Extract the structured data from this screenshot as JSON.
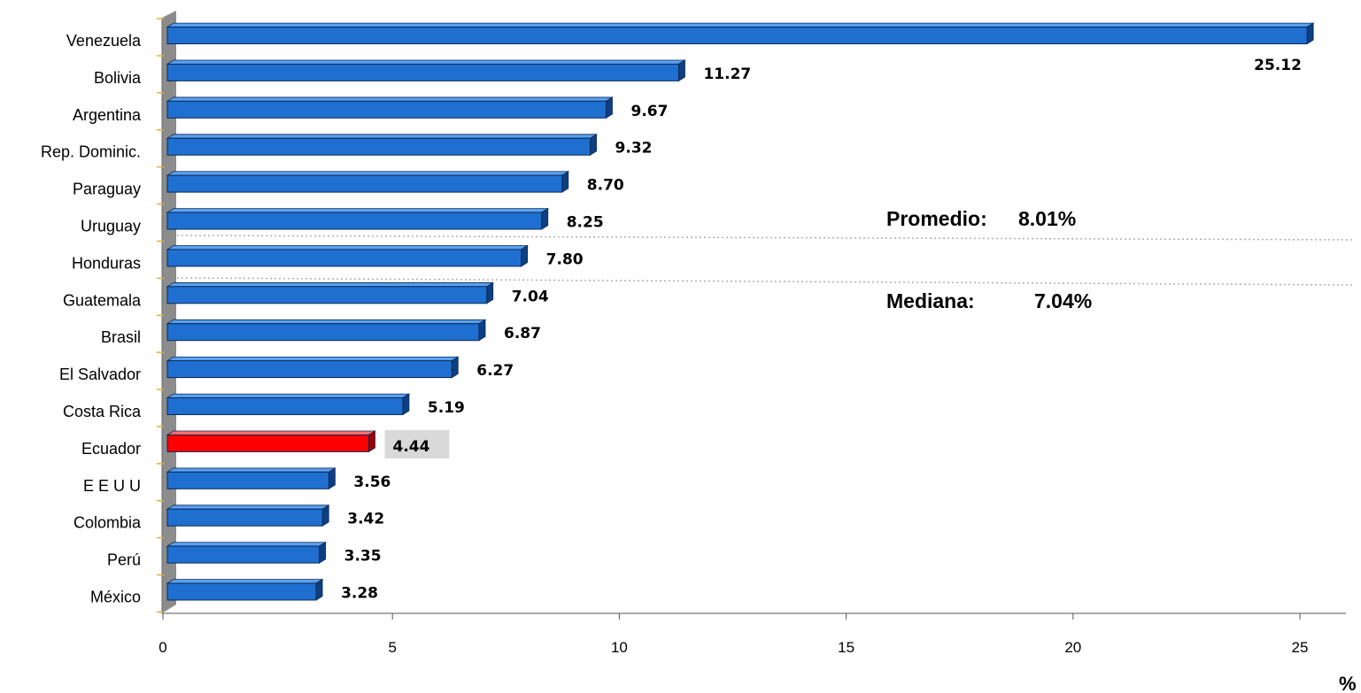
{
  "chart_data": {
    "type": "bar",
    "orientation": "horizontal",
    "categories": [
      "Venezuela",
      "Bolivia",
      "Argentina",
      "Rep. Dominic.",
      "Paraguay",
      "Uruguay",
      "Honduras",
      "Guatemala",
      "Brasil",
      "El Salvador",
      "Costa Rica",
      "Ecuador",
      "E E U U",
      "Colombia",
      "Perú",
      "México"
    ],
    "values": [
      25.12,
      11.27,
      9.67,
      9.32,
      8.7,
      8.25,
      7.8,
      7.04,
      6.87,
      6.27,
      5.19,
      4.44,
      3.56,
      3.42,
      3.35,
      3.28
    ],
    "value_labels": [
      "25.12",
      "11.27",
      "9.67",
      "9.32",
      "8.70",
      "8.25",
      "7.80",
      "7.04",
      "6.87",
      "6.27",
      "5.19",
      "4.44",
      "3.56",
      "3.42",
      "3.35",
      "3.28"
    ],
    "highlight_category": "Ecuador",
    "xlim": [
      0,
      25
    ],
    "xticks": [
      0,
      5,
      10,
      15,
      20,
      25
    ],
    "xtick_labels": [
      "0",
      "5",
      "10",
      "15",
      "20",
      "25"
    ],
    "x_unit_label": "%",
    "grid": false,
    "annotations": [
      {
        "label": "Promedio:",
        "value": "8.01%"
      },
      {
        "label": "Mediana:",
        "value": "7.04%"
      }
    ],
    "colors": {
      "bar": "#1f6fd0",
      "bar_top": "#5aa0f0",
      "bar_side": "#0d3f82",
      "highlight": "#ff0000",
      "highlight_top": "#ff7070",
      "highlight_side": "#a00000",
      "highlight_label_bg": "#d9d9d9",
      "wall": "#8c8c8c",
      "reference_line": "#b0b0b0"
    }
  }
}
